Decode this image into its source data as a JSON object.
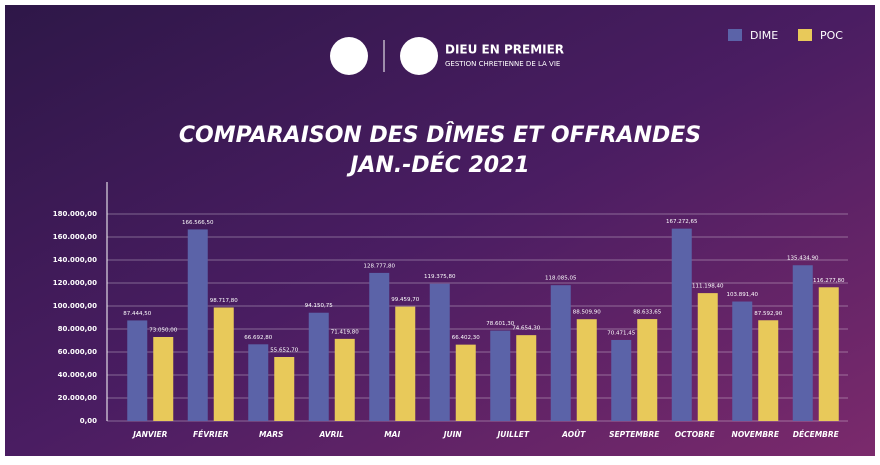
{
  "header": {
    "brand": "DIEU EN PREMIER",
    "tagline": "GESTION CHRETIENNE DE LA VIE"
  },
  "chart_data": {
    "type": "bar",
    "title": "COMPARAISON DES DÎMES ET OFFRANDES",
    "subtitle": "JAN.-DÉC 2021",
    "categories": [
      "JANVIER",
      "FÉVRIER",
      "MARS",
      "AVRIL",
      "MAI",
      "JUIN",
      "JUILLET",
      "AOÛT",
      "SEPTEMBRE",
      "OCTOBRE",
      "NOVEMBRE",
      "DÉCEMBRE"
    ],
    "series": [
      {
        "name": "DIME",
        "color": "#5b63a8",
        "values": [
          87444.5,
          166566.5,
          66692.8,
          94150.75,
          128777.8,
          119375.8,
          78601.3,
          118085.05,
          70471.45,
          167272.65,
          103891.4,
          135434.9
        ],
        "value_labels": [
          "87.444,50",
          "166.566,50",
          "66.692,80",
          "94.150,75",
          "128.777,80",
          "119.375,80",
          "78.601,30",
          "118.085,05",
          "70.471,45",
          "167.272,65",
          "103.891,40",
          "135.434,90"
        ]
      },
      {
        "name": "POC",
        "color": "#e8c95a",
        "values": [
          73050,
          98717.8,
          55652.7,
          71419.8,
          99459.7,
          66402.3,
          74654.3,
          88509.9,
          88633.65,
          111198.4,
          87592.9,
          116277.8
        ],
        "value_labels": [
          "73.050,00",
          "98.717,80",
          "55.652,70",
          "71.419,80",
          "99.459,70",
          "66.402,30",
          "74.654,30",
          "88.509,90",
          "88.633,65",
          "111.198,40",
          "87.592,90",
          "116.277,80"
        ]
      }
    ],
    "ylim": [
      0,
      180000
    ],
    "yticks": [
      {
        "value": 0,
        "label": "0,00"
      },
      {
        "value": 20000,
        "label": "20.000,00"
      },
      {
        "value": 40000,
        "label": "40.000,00"
      },
      {
        "value": 60000,
        "label": "60.000,00"
      },
      {
        "value": 80000,
        "label": "80.000,00"
      },
      {
        "value": 100000,
        "label": "100.000,00"
      },
      {
        "value": 120000,
        "label": "120.000,00"
      },
      {
        "value": 140000,
        "label": "140.000,00"
      },
      {
        "value": 160000,
        "label": "160.000,00"
      },
      {
        "value": 180000,
        "label": "180.000,00"
      }
    ],
    "grid": true,
    "legend": "top-right"
  }
}
